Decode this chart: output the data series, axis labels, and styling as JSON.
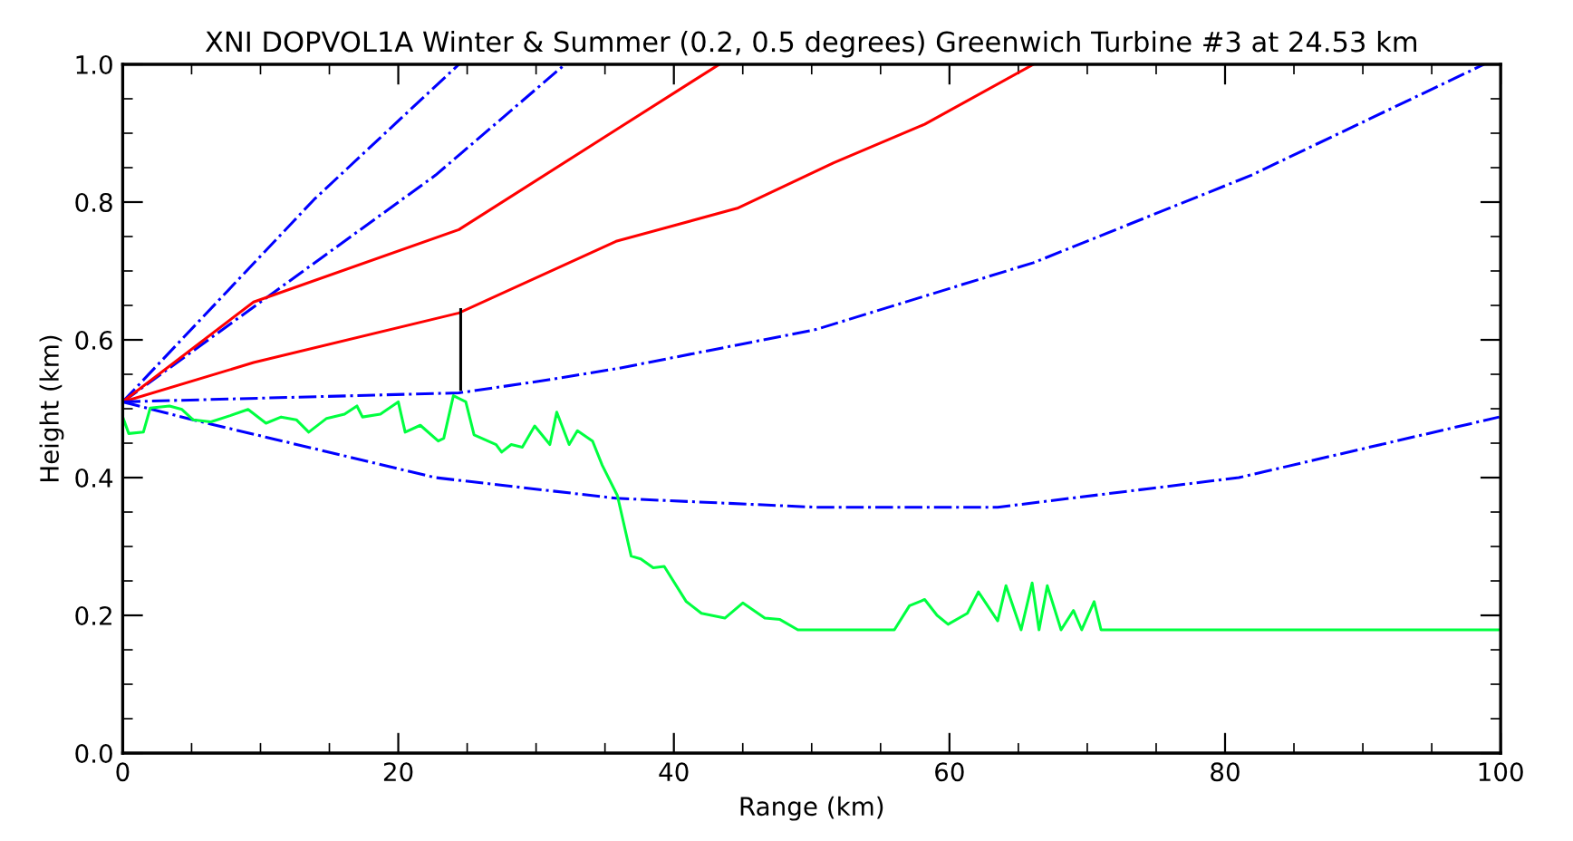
{
  "chart_data": {
    "type": "line",
    "title": "XNI DOPVOL1A Winter & Summer (0.2, 0.5 degrees) Greenwich Turbine #3 at 24.53 km",
    "xlabel": "Range (km)",
    "ylabel": "Height (km)",
    "xlim": [
      0,
      100
    ],
    "ylim": [
      0.0,
      1.0
    ],
    "xticks": [
      0,
      20,
      40,
      60,
      80,
      100
    ],
    "yticks": [
      {
        "value": 0.0,
        "label": "0.0"
      },
      0.2,
      0.4,
      0.6,
      0.8,
      {
        "value": 1.0,
        "label": "1.0"
      }
    ],
    "grid": false,
    "marker": "none",
    "series": [
      {
        "color": "#0000ff",
        "line_style": "dashdot",
        "x": [
          0,
          13.9,
          24.4
        ],
        "values": [
          0.51,
          0.804,
          1.0
        ]
      },
      {
        "color": "#0000ff",
        "line_style": "dashdot",
        "x": [
          0,
          22.7,
          32.1
        ],
        "values": [
          0.51,
          0.839,
          1.0
        ]
      },
      {
        "color": "#ff0000",
        "line_style": "solid",
        "x": [
          0,
          9.5,
          24.4,
          35.8,
          43.3
        ],
        "values": [
          0.51,
          0.655,
          0.76,
          0.905,
          1.0
        ]
      },
      {
        "color": "#ff0000",
        "line_style": "solid",
        "x": [
          0,
          9.5,
          24.4,
          35.8,
          44.6,
          51.6,
          58.2,
          66.1
        ],
        "values": [
          0.51,
          0.567,
          0.639,
          0.743,
          0.791,
          0.857,
          0.913,
          1.0
        ]
      },
      {
        "color": "#0000ff",
        "line_style": "dashdot",
        "x": [
          0,
          24.4,
          30.6,
          35.8,
          50.3,
          66.1,
          81.9,
          98.8
        ],
        "values": [
          0.51,
          0.523,
          0.541,
          0.558,
          0.615,
          0.712,
          0.839,
          1.0
        ]
      },
      {
        "color": "#0000ff",
        "line_style": "dashdot",
        "x": [
          0,
          5.1,
          22.7,
          35.8,
          50.3,
          59.1,
          63.5,
          81.0,
          99.9
        ],
        "values": [
          0.51,
          0.484,
          0.4,
          0.37,
          0.357,
          0.357,
          0.357,
          0.4,
          0.488
        ]
      },
      {
        "color": "#000000",
        "line_style": "solid",
        "x": [
          24.53,
          24.53
        ],
        "values": [
          0.528,
          0.644
        ]
      },
      {
        "color": "#00ff40",
        "line_style": "solid",
        "x": [
          0.0,
          0.44,
          1.5,
          2.0,
          3.4,
          4.3,
          5.1,
          6.4,
          7.8,
          9.1,
          10.4,
          11.5,
          12.6,
          13.5,
          14.8,
          16.1,
          17.0,
          17.4,
          18.7,
          20.0,
          20.5,
          21.6,
          22.9,
          23.3,
          24.0,
          24.9,
          25.5,
          27.1,
          27.5,
          28.2,
          29.0,
          29.9,
          31.0,
          31.5,
          32.4,
          33.0,
          34.1,
          34.8,
          35.9,
          36.9,
          37.6,
          38.5,
          39.3,
          40.9,
          42.0,
          43.7,
          45.0,
          46.6,
          47.7,
          49.0,
          56.0,
          57.1,
          58.2,
          59.1,
          59.9,
          61.3,
          62.1,
          63.5,
          64.1,
          65.2,
          66.0,
          66.5,
          67.1,
          68.1,
          69.0,
          69.6,
          70.5,
          71.0,
          100.0
        ],
        "values": [
          0.488,
          0.464,
          0.466,
          0.501,
          0.504,
          0.499,
          0.484,
          0.481,
          0.49,
          0.499,
          0.479,
          0.488,
          0.484,
          0.466,
          0.486,
          0.492,
          0.504,
          0.488,
          0.492,
          0.51,
          0.466,
          0.476,
          0.453,
          0.457,
          0.519,
          0.51,
          0.462,
          0.448,
          0.437,
          0.448,
          0.444,
          0.475,
          0.448,
          0.495,
          0.448,
          0.468,
          0.453,
          0.418,
          0.374,
          0.286,
          0.282,
          0.269,
          0.271,
          0.22,
          0.203,
          0.196,
          0.218,
          0.196,
          0.194,
          0.179,
          0.179,
          0.214,
          0.223,
          0.2,
          0.187,
          0.203,
          0.234,
          0.192,
          0.243,
          0.179,
          0.247,
          0.179,
          0.243,
          0.179,
          0.207,
          0.179,
          0.22,
          0.179,
          0.179
        ]
      }
    ]
  }
}
